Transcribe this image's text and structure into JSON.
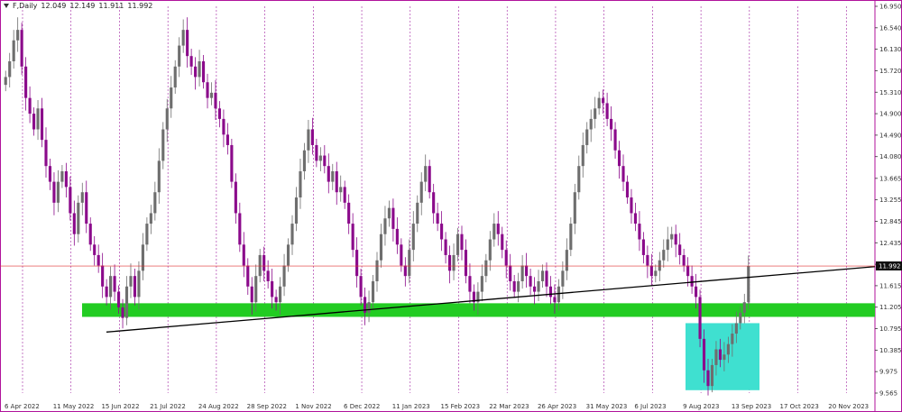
{
  "header": {
    "symbol": "F,Daily",
    "open": "12.049",
    "high": "12.149",
    "low": "11.911",
    "close": "11.992"
  },
  "colors": {
    "up_candle": "#6e6e6e",
    "down_candle": "#8b0a8b",
    "grid": "#a020a0",
    "support_zone": "#22cc22",
    "reversal_zone": "#3fe0d0",
    "trendline": "#000000",
    "price_line": "#e03030",
    "frame": "#b0129b"
  },
  "chart_data": {
    "type": "candlestick",
    "title": "",
    "ylim": [
      9.565,
      16.95
    ],
    "y_ticks": [
      "16.950",
      "16.540",
      "16.130",
      "15.720",
      "15.310",
      "14.900",
      "14.490",
      "14.080",
      "13.665",
      "13.255",
      "12.845",
      "12.435",
      "12.025",
      "11.615",
      "11.205",
      "10.795",
      "10.385",
      "9.975",
      "9.565"
    ],
    "x_ticks": [
      "6 Apr 2022",
      "11 May 2022",
      "15 Jun 2022",
      "21 Jul 2022",
      "24 Aug 2022",
      "28 Sep 2022",
      "1 Nov 2022",
      "6 Dec 2022",
      "11 Jan 2023",
      "15 Feb 2023",
      "22 Mar 2023",
      "26 Apr 2023",
      "31 May 2023",
      "6 Jul 2023",
      "9 Aug 2023",
      "13 Sep 2023",
      "17 Oct 2023",
      "20 Nov 2023"
    ],
    "current_price_label": "11.992",
    "closes": [
      15.6,
      15.9,
      16.3,
      16.5,
      15.8,
      15.2,
      14.9,
      14.6,
      15.0,
      14.4,
      13.9,
      13.6,
      13.2,
      13.6,
      13.8,
      13.5,
      13.0,
      12.6,
      13.2,
      13.4,
      12.8,
      12.4,
      12.2,
      12.0,
      11.6,
      11.4,
      11.8,
      11.5,
      11.2,
      11.0,
      11.6,
      11.8,
      11.4,
      11.9,
      12.4,
      12.8,
      13.0,
      13.4,
      14.0,
      14.6,
      15.0,
      15.4,
      15.8,
      16.2,
      16.5,
      16.0,
      15.8,
      15.6,
      15.9,
      15.5,
      15.2,
      15.3,
      15.0,
      14.8,
      14.5,
      14.3,
      13.6,
      13.0,
      12.4,
      12.0,
      11.6,
      11.3,
      11.8,
      12.2,
      11.9,
      11.7,
      11.4,
      11.3,
      11.6,
      12.0,
      12.4,
      12.8,
      13.3,
      13.8,
      14.2,
      14.6,
      14.3,
      14.0,
      14.1,
      13.9,
      13.6,
      13.8,
      13.4,
      13.5,
      13.2,
      12.8,
      12.3,
      11.8,
      11.4,
      11.1,
      11.3,
      11.7,
      12.1,
      12.6,
      12.9,
      13.1,
      12.7,
      12.4,
      12.0,
      11.8,
      12.3,
      12.8,
      13.2,
      13.6,
      13.9,
      13.4,
      13.0,
      12.8,
      12.5,
      12.2,
      11.9,
      12.2,
      12.6,
      12.3,
      11.8,
      11.5,
      11.3,
      11.5,
      11.8,
      12.1,
      12.5,
      12.8,
      12.6,
      12.3,
      12.0,
      11.7,
      11.5,
      11.7,
      12.0,
      11.8,
      11.6,
      11.5,
      11.7,
      11.9,
      11.6,
      11.4,
      11.3,
      11.6,
      11.9,
      12.3,
      12.8,
      13.4,
      13.9,
      14.3,
      14.6,
      14.8,
      15.0,
      15.2,
      15.1,
      14.8,
      14.6,
      14.2,
      13.9,
      13.6,
      13.3,
      13.0,
      12.8,
      12.5,
      12.2,
      12.0,
      11.8,
      11.9,
      12.1,
      12.3,
      12.5,
      12.6,
      12.4,
      12.2,
      12.0,
      11.8,
      11.6,
      11.4,
      10.6,
      10.0,
      9.7,
      10.1,
      10.4,
      10.2,
      10.3,
      10.5,
      10.7,
      10.9,
      11.1,
      11.3,
      11.992
    ]
  }
}
